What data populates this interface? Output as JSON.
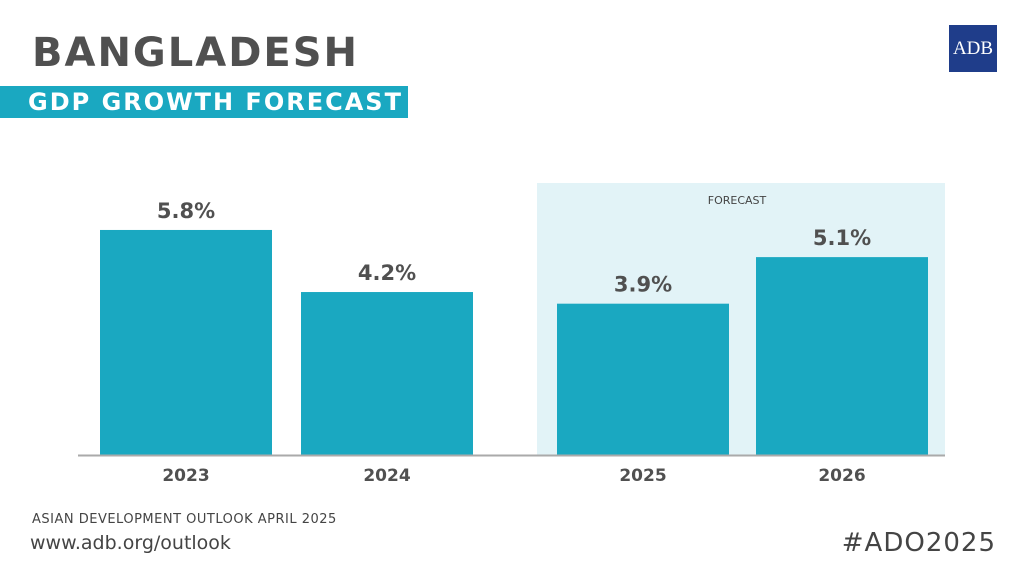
{
  "header": {
    "title": "BANGLADESH",
    "subtitle": "GDP GROWTH FORECAST",
    "logo": "ADB"
  },
  "footer": {
    "source": "ASIAN DEVELOPMENT OUTLOOK APRIL 2025",
    "url": "www.adb.org/outlook",
    "hashtag": "#ADO2025"
  },
  "colors": {
    "bar": "#1aa8c1",
    "forecast_bg": "#e2f3f7",
    "text": "#505050",
    "logo": "#1f3d8a"
  },
  "chart_data": {
    "type": "bar",
    "categories": [
      "2023",
      "2024",
      "2025",
      "2026"
    ],
    "values": [
      5.8,
      4.2,
      3.9,
      5.1
    ],
    "labels": [
      "5.8%",
      "4.2%",
      "3.9%",
      "5.1%"
    ],
    "forecast_label": "FORECAST",
    "forecast_categories": [
      "2025",
      "2026"
    ],
    "ylim": [
      0,
      7
    ],
    "grid": false
  }
}
